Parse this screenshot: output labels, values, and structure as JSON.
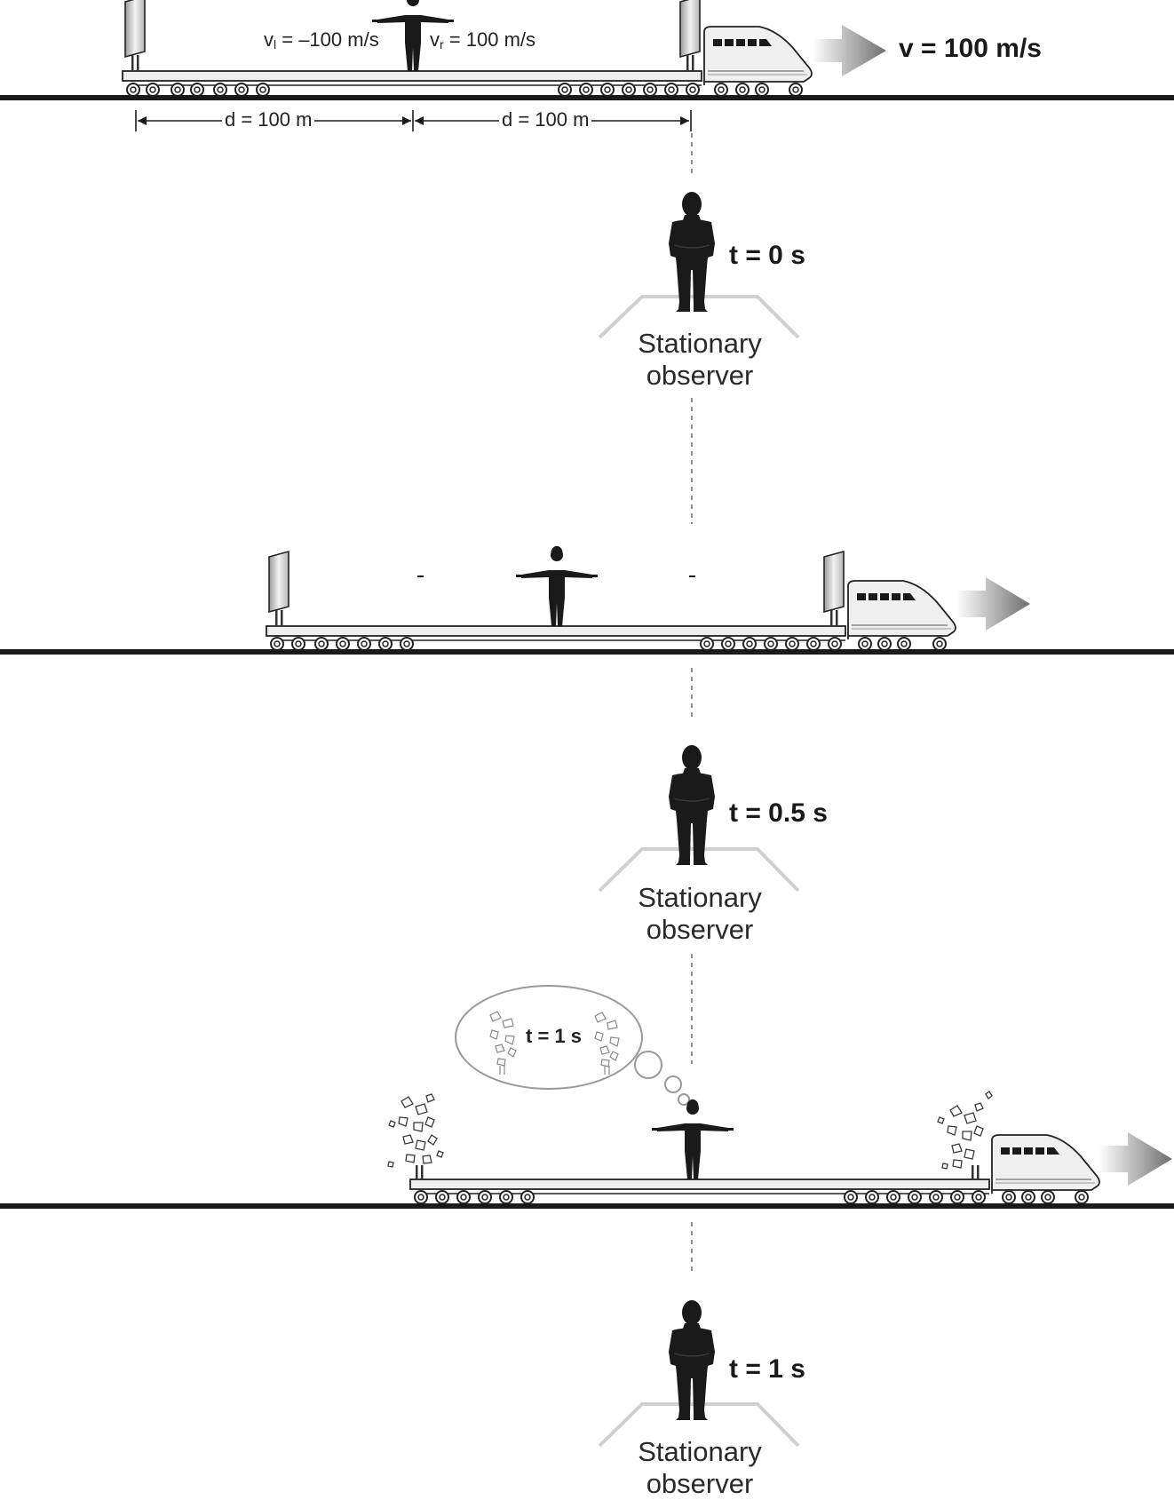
{
  "top": {
    "v_left_prefix": "v",
    "v_left_sub": "l",
    "v_left_value": " = –100 m/s",
    "v_right_prefix": "v",
    "v_right_sub": "r",
    "v_right_value": " = 100 m/s",
    "train_speed": "v = 100 m/s",
    "d_left": "d = 100 m",
    "d_right": "d = 100 m"
  },
  "panels": [
    {
      "time": "t = 0 s",
      "observer_line1": "Stationary",
      "observer_line2": "observer"
    },
    {
      "time": "t = 0.5 s",
      "observer_line1": "Stationary",
      "observer_line2": "observer"
    },
    {
      "time": "t = 1 s",
      "observer_line1": "Stationary",
      "observer_line2": "observer"
    }
  ],
  "bubble": {
    "time": "t = 1 s"
  },
  "colors": {
    "ink": "#1a1a1a",
    "panel_gray": "#d9d9d9",
    "arrow_gray": "#7a7a7a"
  }
}
